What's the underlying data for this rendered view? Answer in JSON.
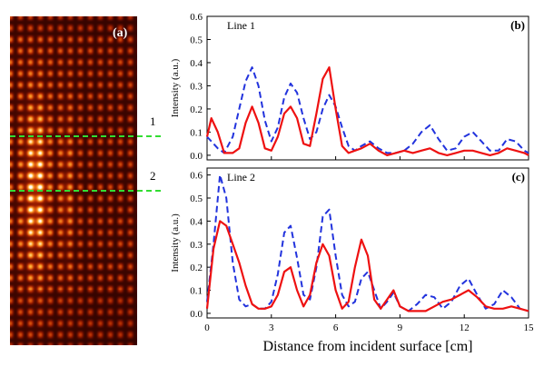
{
  "panel_a": {
    "label": "(a)",
    "line_markers": [
      {
        "label": "1",
        "color": "#33dd33"
      },
      {
        "label": "2",
        "color": "#33dd33"
      }
    ],
    "colormap": [
      "#1a0000",
      "#5a0a00",
      "#a02000",
      "#e05a10",
      "#ffb030",
      "#ffffff"
    ]
  },
  "xlabel": "Distance from incident surface [cm]",
  "chart_data": [
    {
      "type": "line",
      "panel_label": "(b)",
      "title": "Line 1",
      "xlabel": "",
      "ylabel": "Intensity (a.u.)",
      "xlim": [
        0,
        15
      ],
      "ylim": [
        -0.02,
        0.6
      ],
      "xticks": [
        0,
        3,
        6,
        9,
        12,
        15
      ],
      "xtick_labels": [
        "",
        "",
        "",
        "",
        "",
        ""
      ],
      "yticks": [
        0.0,
        0.1,
        0.2,
        0.3,
        0.4,
        0.5,
        0.6
      ],
      "ytick_labels": [
        "0.0",
        "0.1",
        "0.2",
        "0.3",
        "0.4",
        "0.5",
        "0.6"
      ],
      "series": [
        {
          "color": "#2233dd",
          "dash": "dashed",
          "x": [
            0,
            0.2,
            0.5,
            0.8,
            1.2,
            1.5,
            1.8,
            2.1,
            2.4,
            2.7,
            3.0,
            3.3,
            3.6,
            3.9,
            4.2,
            4.5,
            4.8,
            5.1,
            5.4,
            5.7,
            6.0,
            6.3,
            6.6,
            6.9,
            7.2,
            7.6,
            8.0,
            8.4,
            8.8,
            9.2,
            9.6,
            10.0,
            10.4,
            10.8,
            11.2,
            11.6,
            12.0,
            12.4,
            12.8,
            13.2,
            13.6,
            14.0,
            14.4,
            14.8,
            15.0
          ],
          "y": [
            0.08,
            0.06,
            0.03,
            0.01,
            0.08,
            0.2,
            0.32,
            0.38,
            0.3,
            0.15,
            0.06,
            0.12,
            0.25,
            0.31,
            0.27,
            0.16,
            0.07,
            0.1,
            0.2,
            0.26,
            0.21,
            0.12,
            0.04,
            0.02,
            0.04,
            0.06,
            0.03,
            0.01,
            0.01,
            0.02,
            0.05,
            0.1,
            0.13,
            0.07,
            0.02,
            0.03,
            0.08,
            0.1,
            0.06,
            0.02,
            0.02,
            0.07,
            0.06,
            0.02,
            0.01
          ]
        },
        {
          "color": "#ee1111",
          "dash": "solid",
          "x": [
            0,
            0.2,
            0.5,
            0.8,
            1.2,
            1.5,
            1.8,
            2.1,
            2.4,
            2.7,
            3.0,
            3.3,
            3.6,
            3.9,
            4.2,
            4.5,
            4.8,
            5.1,
            5.4,
            5.7,
            6.0,
            6.3,
            6.6,
            6.9,
            7.2,
            7.6,
            8.0,
            8.4,
            8.8,
            9.2,
            9.6,
            10.0,
            10.4,
            10.8,
            11.2,
            11.6,
            12.0,
            12.4,
            12.8,
            13.2,
            13.6,
            14.0,
            14.4,
            14.8,
            15.0
          ],
          "y": [
            0.08,
            0.16,
            0.1,
            0.01,
            0.01,
            0.03,
            0.14,
            0.21,
            0.14,
            0.03,
            0.02,
            0.08,
            0.18,
            0.21,
            0.16,
            0.05,
            0.04,
            0.18,
            0.33,
            0.38,
            0.2,
            0.04,
            0.01,
            0.02,
            0.03,
            0.05,
            0.02,
            0.0,
            0.01,
            0.02,
            0.01,
            0.02,
            0.03,
            0.01,
            0.0,
            0.01,
            0.02,
            0.02,
            0.01,
            0.0,
            0.01,
            0.03,
            0.02,
            0.01,
            0.0
          ]
        }
      ]
    },
    {
      "type": "line",
      "panel_label": "(c)",
      "title": "Line 2",
      "xlabel": "Distance from incident surface [cm]",
      "ylabel": "Intensity (a.u.)",
      "xlim": [
        0,
        15
      ],
      "ylim": [
        -0.02,
        0.63
      ],
      "xticks": [
        0,
        3,
        6,
        9,
        12,
        15
      ],
      "xtick_labels": [
        "0",
        "3",
        "6",
        "9",
        "12",
        "15"
      ],
      "yticks": [
        0.0,
        0.1,
        0.2,
        0.3,
        0.4,
        0.5,
        0.6
      ],
      "ytick_labels": [
        "0.0",
        "0.1",
        "0.2",
        "0.3",
        "0.4",
        "0.5",
        "0.6"
      ],
      "series": [
        {
          "color": "#2233dd",
          "dash": "dashed",
          "x": [
            0,
            0.3,
            0.6,
            0.9,
            1.2,
            1.5,
            1.8,
            2.1,
            2.4,
            2.7,
            3.0,
            3.3,
            3.6,
            3.9,
            4.2,
            4.5,
            4.8,
            5.1,
            5.4,
            5.7,
            6.0,
            6.3,
            6.6,
            6.9,
            7.2,
            7.5,
            7.8,
            8.1,
            8.4,
            8.7,
            9.0,
            9.4,
            9.8,
            10.2,
            10.6,
            11.0,
            11.4,
            11.8,
            12.2,
            12.6,
            13.0,
            13.4,
            13.8,
            14.2,
            14.6,
            15.0
          ],
          "y": [
            0.05,
            0.3,
            0.6,
            0.5,
            0.22,
            0.06,
            0.03,
            0.04,
            0.02,
            0.02,
            0.05,
            0.17,
            0.35,
            0.38,
            0.24,
            0.08,
            0.06,
            0.2,
            0.42,
            0.45,
            0.25,
            0.08,
            0.03,
            0.05,
            0.15,
            0.18,
            0.1,
            0.02,
            0.05,
            0.09,
            0.03,
            0.01,
            0.04,
            0.08,
            0.07,
            0.02,
            0.05,
            0.12,
            0.15,
            0.08,
            0.02,
            0.04,
            0.1,
            0.07,
            0.02,
            0.01
          ]
        },
        {
          "color": "#ee1111",
          "dash": "solid",
          "x": [
            0,
            0.3,
            0.6,
            0.9,
            1.2,
            1.5,
            1.8,
            2.1,
            2.4,
            2.7,
            3.0,
            3.3,
            3.6,
            3.9,
            4.2,
            4.5,
            4.8,
            5.1,
            5.4,
            5.7,
            6.0,
            6.3,
            6.6,
            6.9,
            7.2,
            7.5,
            7.8,
            8.1,
            8.4,
            8.7,
            9.0,
            9.4,
            9.8,
            10.2,
            10.6,
            11.0,
            11.4,
            11.8,
            12.2,
            12.6,
            13.0,
            13.4,
            13.8,
            14.2,
            14.6,
            15.0
          ],
          "y": [
            0.02,
            0.28,
            0.4,
            0.38,
            0.3,
            0.22,
            0.12,
            0.04,
            0.02,
            0.02,
            0.03,
            0.08,
            0.18,
            0.2,
            0.1,
            0.03,
            0.08,
            0.22,
            0.3,
            0.25,
            0.1,
            0.02,
            0.05,
            0.2,
            0.32,
            0.25,
            0.06,
            0.02,
            0.06,
            0.1,
            0.03,
            0.01,
            0.01,
            0.01,
            0.03,
            0.05,
            0.06,
            0.08,
            0.1,
            0.07,
            0.03,
            0.02,
            0.02,
            0.03,
            0.02,
            0.01
          ]
        }
      ]
    }
  ]
}
